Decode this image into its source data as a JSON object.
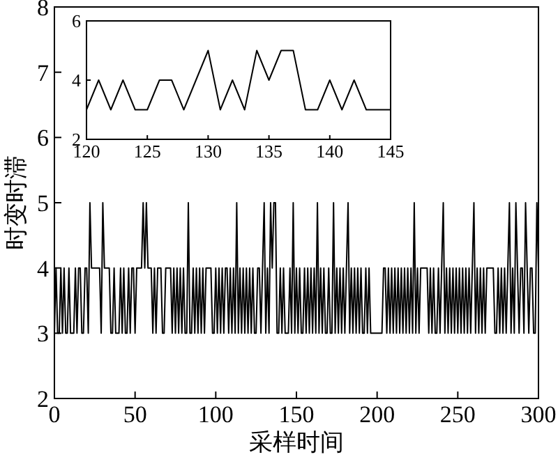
{
  "chart_data": [
    {
      "type": "line",
      "xlabel": "采样时间",
      "ylabel": "时变时滞",
      "xlim": [
        0,
        300
      ],
      "ylim": [
        2,
        8
      ],
      "xticks": [
        0,
        50,
        100,
        150,
        200,
        250,
        300
      ],
      "yticks": [
        2,
        3,
        4,
        5,
        6,
        7,
        8
      ],
      "grid": false,
      "series": [
        {
          "color": "#000000",
          "x": [
            0,
            1,
            2,
            3,
            4,
            5,
            6,
            7,
            8,
            9,
            10,
            11,
            12,
            13,
            14,
            15,
            16,
            17,
            18,
            19,
            20,
            21,
            22,
            23,
            24,
            25,
            26,
            27,
            28,
            29,
            30,
            31,
            32,
            33,
            34,
            35,
            36,
            37,
            38,
            39,
            40,
            41,
            42,
            43,
            44,
            45,
            46,
            47,
            48,
            49,
            50,
            51,
            52,
            53,
            54,
            55,
            56,
            57,
            58,
            59,
            60,
            61,
            62,
            63,
            64,
            65,
            66,
            67,
            68,
            69,
            70,
            71,
            72,
            73,
            74,
            75,
            76,
            77,
            78,
            79,
            80,
            81,
            82,
            83,
            84,
            85,
            86,
            87,
            88,
            89,
            90,
            91,
            92,
            93,
            94,
            95,
            96,
            97,
            98,
            99,
            100,
            101,
            102,
            103,
            104,
            105,
            106,
            107,
            108,
            109,
            110,
            111,
            112,
            113,
            114,
            115,
            116,
            117,
            118,
            119,
            120,
            121,
            122,
            123,
            124,
            125,
            126,
            127,
            128,
            129,
            130,
            131,
            132,
            133,
            134,
            135,
            136,
            137,
            138,
            139,
            140,
            141,
            142,
            143,
            144,
            145,
            146,
            147,
            148,
            149,
            150,
            151,
            152,
            153,
            154,
            155,
            156,
            157,
            158,
            159,
            160,
            161,
            162,
            163,
            164,
            165,
            166,
            167,
            168,
            169,
            170,
            171,
            172,
            173,
            174,
            175,
            176,
            177,
            178,
            179,
            180,
            181,
            182,
            183,
            184,
            185,
            186,
            187,
            188,
            189,
            190,
            191,
            192,
            193,
            194,
            195,
            196,
            197,
            198,
            199,
            200,
            201,
            202,
            203,
            204,
            205,
            206,
            207,
            208,
            209,
            210,
            211,
            212,
            213,
            214,
            215,
            216,
            217,
            218,
            219,
            220,
            221,
            222,
            223,
            224,
            225,
            226,
            227,
            228,
            229,
            230,
            231,
            232,
            233,
            234,
            235,
            236,
            237,
            238,
            239,
            240,
            241,
            242,
            243,
            244,
            245,
            246,
            247,
            248,
            249,
            250,
            251,
            252,
            253,
            254,
            255,
            256,
            257,
            258,
            259,
            260,
            261,
            262,
            263,
            264,
            265,
            266,
            267,
            268,
            269,
            270,
            271,
            272,
            273,
            274,
            275,
            276,
            277,
            278,
            279,
            280,
            281,
            282,
            283,
            284,
            285,
            286,
            287,
            288,
            289,
            290,
            291,
            292,
            293,
            294,
            295,
            296,
            297,
            298,
            299,
            300
          ],
          "values": [
            3,
            4,
            3,
            3,
            4,
            3,
            4,
            3,
            3,
            4,
            3,
            3,
            3,
            4,
            3,
            4,
            4,
            3,
            3,
            4,
            4,
            3,
            5,
            4,
            4,
            4,
            4,
            4,
            4,
            3,
            5,
            4,
            4,
            4,
            4,
            3,
            3,
            4,
            3,
            3,
            3,
            4,
            3,
            4,
            3,
            3,
            4,
            3,
            4,
            4,
            3,
            4,
            4,
            4,
            4,
            5,
            4,
            5,
            4,
            4,
            4,
            3,
            4,
            3,
            4,
            4,
            4,
            3,
            3,
            4,
            4,
            4,
            4,
            3,
            4,
            3,
            4,
            3,
            4,
            3,
            4,
            3,
            3,
            5,
            3,
            3,
            4,
            3,
            4,
            3,
            4,
            3,
            4,
            3,
            4,
            4,
            4,
            4,
            3,
            3,
            4,
            3,
            4,
            3,
            4,
            3,
            4,
            4,
            3,
            4,
            3,
            4,
            3,
            5,
            3,
            4,
            3,
            4,
            3,
            4,
            3,
            4,
            3,
            4,
            3,
            3,
            4,
            4,
            3,
            4,
            5,
            3,
            4,
            3,
            5,
            4,
            5,
            5,
            3,
            3,
            4,
            3,
            4,
            3,
            3,
            3,
            4,
            3,
            5,
            3,
            4,
            3,
            4,
            3,
            3,
            4,
            3,
            4,
            3,
            4,
            3,
            4,
            3,
            5,
            3,
            4,
            3,
            4,
            3,
            3,
            4,
            3,
            3,
            5,
            3,
            4,
            3,
            4,
            3,
            4,
            3,
            4,
            5,
            3,
            4,
            3,
            4,
            3,
            4,
            3,
            4,
            3,
            3,
            4,
            3,
            4,
            3,
            3,
            3,
            3,
            3,
            3,
            3,
            3,
            4,
            4,
            3,
            4,
            3,
            4,
            3,
            4,
            3,
            4,
            3,
            4,
            3,
            4,
            3,
            4,
            3,
            4,
            3,
            5,
            3,
            4,
            3,
            4,
            4,
            4,
            4,
            4,
            3,
            4,
            3,
            4,
            3,
            3,
            4,
            3,
            4,
            5,
            3,
            4,
            3,
            4,
            3,
            4,
            3,
            4,
            3,
            4,
            3,
            4,
            3,
            4,
            3,
            4,
            3,
            4,
            5,
            3,
            4,
            3,
            4,
            3,
            4,
            3,
            4,
            4,
            4,
            4,
            4,
            3,
            3,
            4,
            3,
            4,
            3,
            4,
            3,
            4,
            5,
            3,
            4,
            3,
            5,
            4,
            3,
            4,
            4,
            3,
            5,
            4,
            3,
            4,
            4,
            3,
            3,
            5,
            4
          ]
        }
      ]
    },
    {
      "type": "line",
      "xlim": [
        120,
        145
      ],
      "ylim": [
        2,
        6
      ],
      "xticks": [
        120,
        125,
        130,
        135,
        140,
        145
      ],
      "yticks": [
        2,
        4,
        6
      ],
      "grid": false,
      "series": [
        {
          "color": "#000000",
          "x": [
            120,
            121,
            122,
            123,
            124,
            125,
            126,
            127,
            128,
            129,
            130,
            131,
            132,
            133,
            134,
            135,
            136,
            137,
            138,
            139,
            140,
            141,
            142,
            143,
            144,
            145
          ],
          "values": [
            3,
            4,
            3,
            4,
            3,
            3,
            4,
            4,
            3,
            4,
            5,
            3,
            4,
            3,
            5,
            4,
            5,
            5,
            3,
            3,
            4,
            3,
            4,
            3,
            3,
            3
          ]
        }
      ]
    }
  ]
}
